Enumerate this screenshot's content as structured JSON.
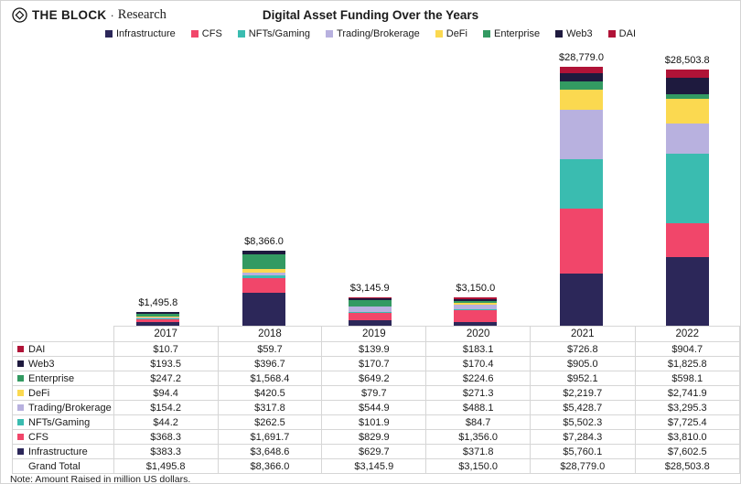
{
  "header": {
    "brand": {
      "name": "THE BLOCK",
      "separator": "·",
      "suffix": "Research"
    },
    "title": "Digital Asset Funding Over the Years"
  },
  "colors": {
    "Infrastructure": "#2C2759",
    "CFS": "#F1466A",
    "NFTs/Gaming": "#3ABCB0",
    "Trading/Brokerage": "#B8B1DF",
    "DeFi": "#FBD950",
    "Enterprise": "#339A62",
    "Web3": "#1E1A3E",
    "DAI": "#B01337"
  },
  "chart_data": {
    "type": "bar",
    "stacked": true,
    "title": "Digital Asset Funding Over the Years",
    "legend_position": "top",
    "grid": false,
    "ymax": 28779.0,
    "unit": "million US dollars",
    "categories": [
      "2017",
      "2018",
      "2019",
      "2020",
      "2021",
      "2022"
    ],
    "series": [
      {
        "name": "Infrastructure",
        "values": [
          383.3,
          3648.6,
          629.7,
          371.8,
          5760.1,
          7602.5
        ]
      },
      {
        "name": "CFS",
        "values": [
          368.3,
          1691.7,
          829.9,
          1356.0,
          7284.3,
          3810.0
        ]
      },
      {
        "name": "NFTs/Gaming",
        "values": [
          44.2,
          262.5,
          101.9,
          84.7,
          5502.3,
          7725.4
        ]
      },
      {
        "name": "Trading/Brokerage",
        "values": [
          154.2,
          317.8,
          544.9,
          488.1,
          5428.7,
          3295.3
        ]
      },
      {
        "name": "DeFi",
        "values": [
          94.4,
          420.5,
          79.7,
          271.3,
          2219.7,
          2741.9
        ]
      },
      {
        "name": "Enterprise",
        "values": [
          247.2,
          1568.4,
          649.2,
          224.6,
          952.1,
          598.1
        ]
      },
      {
        "name": "Web3",
        "values": [
          193.5,
          396.7,
          170.7,
          170.4,
          905.0,
          1825.8
        ]
      },
      {
        "name": "DAI",
        "values": [
          10.7,
          59.7,
          139.9,
          183.1,
          726.8,
          904.7
        ]
      }
    ],
    "totals": [
      1495.8,
      8366.0,
      3145.9,
      3150.0,
      28779.0,
      28503.8
    ],
    "total_labels": [
      "$1,495.8",
      "$8,366.0",
      "$3,145.9",
      "$3,150.0",
      "$28,779.0",
      "$28,503.8"
    ]
  },
  "table": {
    "columns": [
      "",
      "2017",
      "2018",
      "2019",
      "2020",
      "2021",
      "2022"
    ],
    "rows": [
      {
        "label": "DAI",
        "swatch": "DAI",
        "values": [
          "$10.7",
          "$59.7",
          "$139.9",
          "$183.1",
          "$726.8",
          "$904.7"
        ]
      },
      {
        "label": "Web3",
        "swatch": "Web3",
        "values": [
          "$193.5",
          "$396.7",
          "$170.7",
          "$170.4",
          "$905.0",
          "$1,825.8"
        ]
      },
      {
        "label": "Enterprise",
        "swatch": "Enterprise",
        "values": [
          "$247.2",
          "$1,568.4",
          "$649.2",
          "$224.6",
          "$952.1",
          "$598.1"
        ]
      },
      {
        "label": "DeFi",
        "swatch": "DeFi",
        "values": [
          "$94.4",
          "$420.5",
          "$79.7",
          "$271.3",
          "$2,219.7",
          "$2,741.9"
        ]
      },
      {
        "label": "Trading/Brokerage",
        "swatch": "Trading/Brokerage",
        "values": [
          "$154.2",
          "$317.8",
          "$544.9",
          "$488.1",
          "$5,428.7",
          "$3,295.3"
        ]
      },
      {
        "label": "NFTs/Gaming",
        "swatch": "NFTs/Gaming",
        "values": [
          "$44.2",
          "$262.5",
          "$101.9",
          "$84.7",
          "$5,502.3",
          "$7,725.4"
        ]
      },
      {
        "label": "CFS",
        "swatch": "CFS",
        "values": [
          "$368.3",
          "$1,691.7",
          "$829.9",
          "$1,356.0",
          "$7,284.3",
          "$3,810.0"
        ]
      },
      {
        "label": "Infrastructure",
        "swatch": "Infrastructure",
        "values": [
          "$383.3",
          "$3,648.6",
          "$629.7",
          "$371.8",
          "$5,760.1",
          "$7,602.5"
        ]
      },
      {
        "label": "Grand Total",
        "swatch": null,
        "values": [
          "$1,495.8",
          "$8,366.0",
          "$3,145.9",
          "$3,150.0",
          "$28,779.0",
          "$28,503.8"
        ]
      }
    ]
  },
  "note": "Note: Amount Raised in million US dollars."
}
